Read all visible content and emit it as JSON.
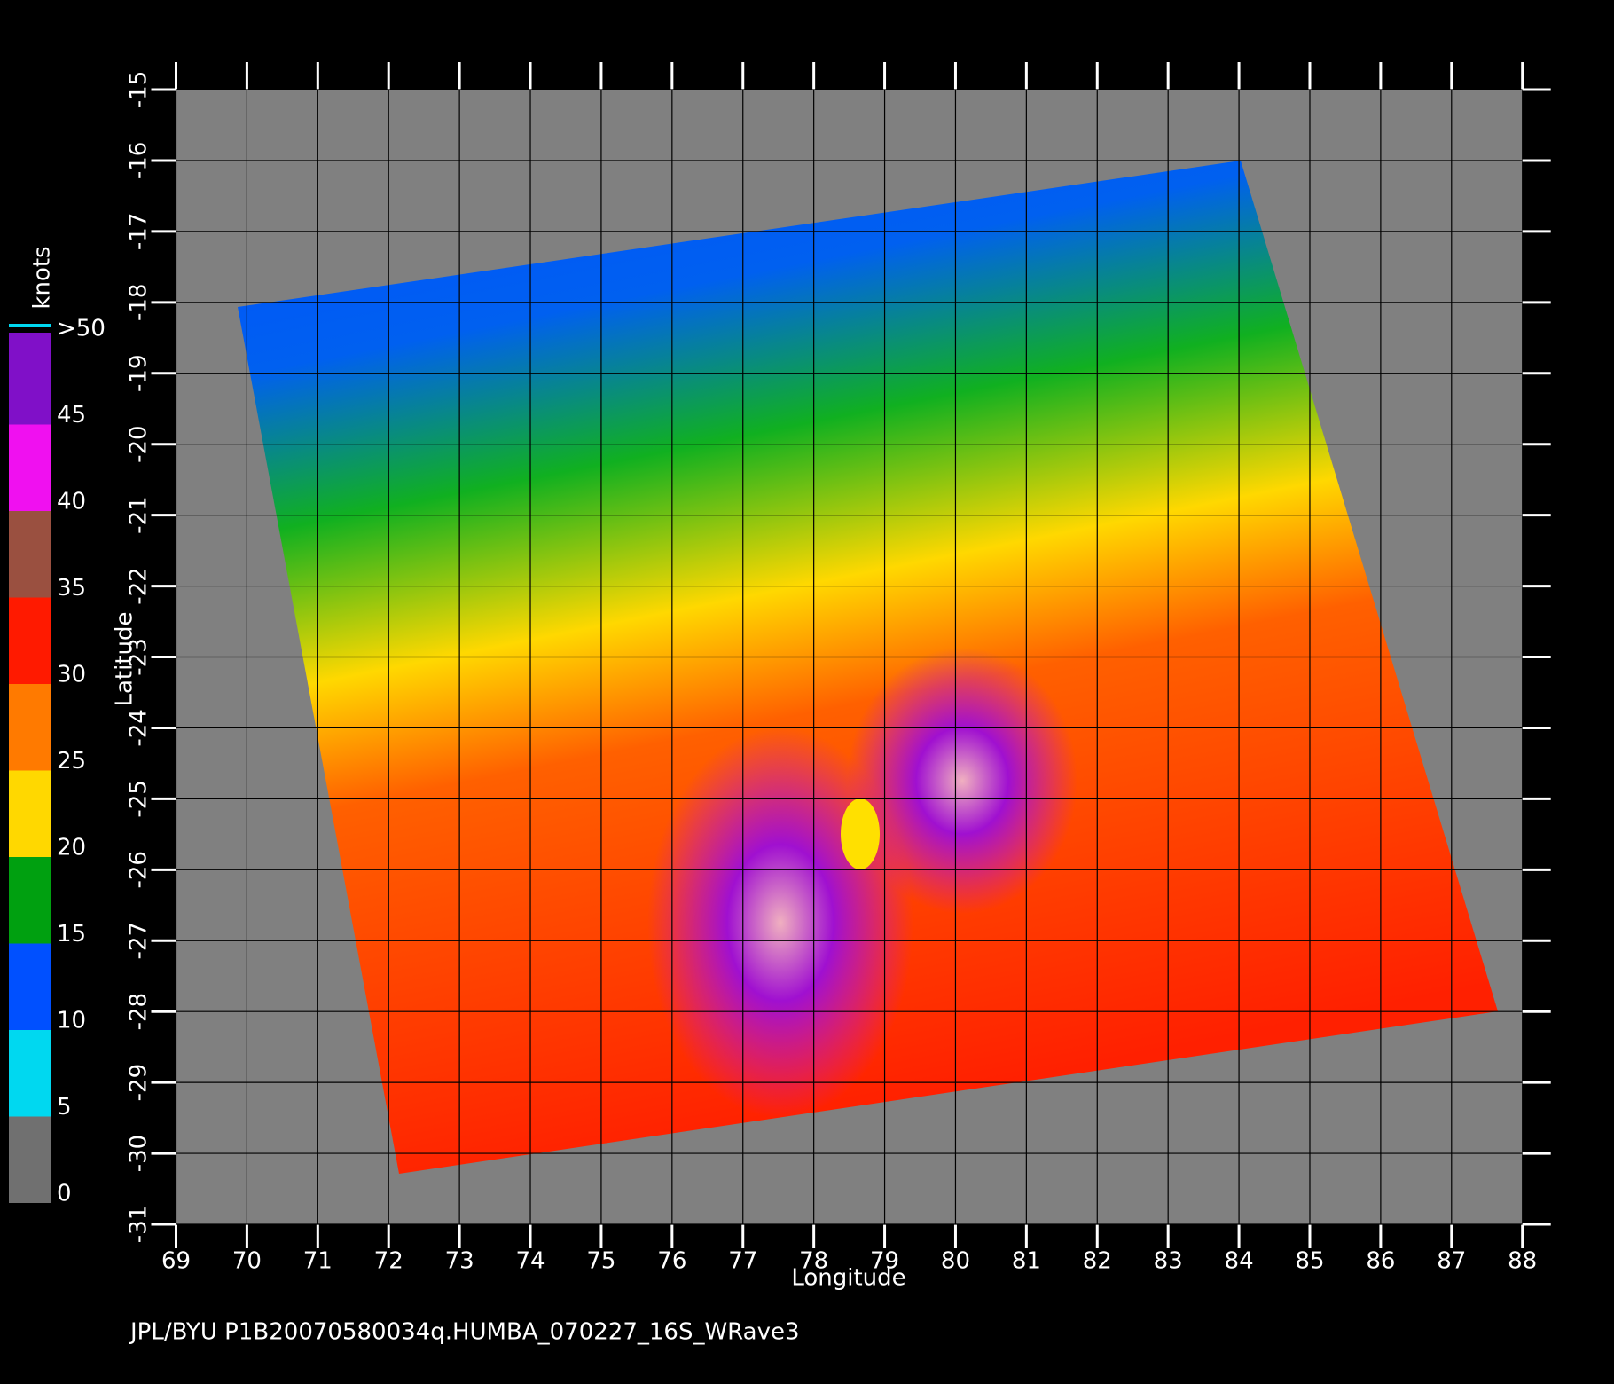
{
  "chart_data": {
    "type": "map",
    "xlabel": "Longitude",
    "ylabel": "Latitude",
    "xlim": [
      69,
      88
    ],
    "xticks": [
      69,
      70,
      71,
      72,
      73,
      74,
      75,
      76,
      77,
      78,
      79,
      80,
      81,
      82,
      83,
      84,
      85,
      86,
      87,
      88
    ],
    "ylim": [
      -31,
      -15
    ],
    "yticks": [
      -31,
      -30,
      -29,
      -28,
      -27,
      -26,
      -25,
      -24,
      -23,
      -22,
      -21,
      -20,
      -19,
      -18,
      -17,
      -16,
      -15
    ],
    "grid": true,
    "colorbar": {
      "label": "knots",
      "lim": [
        0,
        50
      ],
      "ticks": [
        0,
        5,
        10,
        15,
        20,
        25,
        30,
        35,
        40,
        45,
        {
          "value": 50,
          "label": ">50"
        }
      ],
      "colors": [
        "#707070",
        "#00d8f0",
        "#0050ff",
        "#00a010",
        "#ffd800",
        "#ff7a00",
        "#ff1a00",
        "#9a5040",
        "#f010f0",
        "#8010c8"
      ]
    },
    "footer": "JPL/BYU  P1B20070580034q.HUMBA_070227_16S_WRave3"
  }
}
